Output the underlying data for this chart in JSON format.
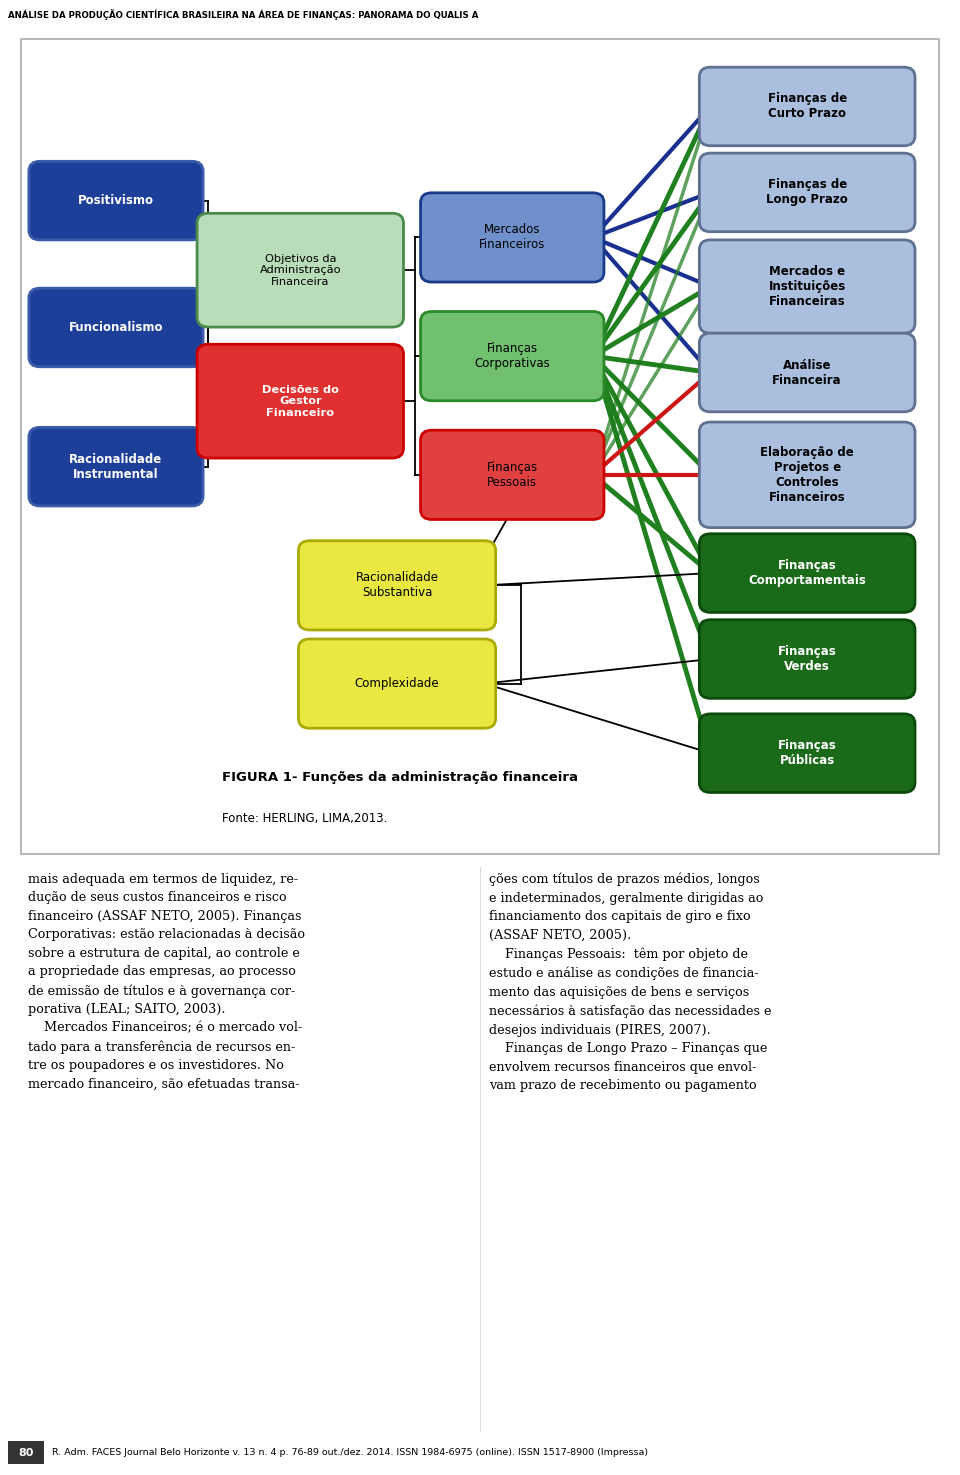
{
  "header_text": "ANÁLISE DA PRODUÇÃO CIENTÍFICA BRASILEIRA NA ÁREA DE FINANÇAS: PANORAMA DO QUALIS A",
  "figure_title": "FIGURA 1- Funções da administração financeira",
  "figure_source": "Fonte: HERLING, LIMA,2013.",
  "footer_text": "R. Adm. FACES Journal Belo Horizonte v. 13 n. 4 p. 76-89 out./dez. 2014. ISSN 1984-6975 (online). ISSN 1517-8900 (Impressa)",
  "body_text_left": "mais adequada em termos de liquidez, re-\ndução de seus custos financeiros e risco\nfinanceiro (ASSAF NETO, 2005). Finanças\nCorporativas: estão relacionadas à decisão\nsobre a estrutura de capital, ao controle e\na propriedade das empresas, ao processo\nde emissão de títulos e à governança cor-\nporativa (LEAL; SAITO, 2003).\n    Mercados Financeiros; é o mercado vol-\ntado para a transferência de recursos en-\ntre os poupadores e os investidores. No\nmercado financeiro, são efetuadas transa-",
  "body_text_right": "ções com títulos de prazos médios, longos\ne indeterminados, geralmente dirigidas ao\nfinanciamento dos capitais de giro e fixo\n(ASSAF NETO, 2005).\n    Finanças Pessoais:  têm por objeto de\nestudo e análise as condições de financia-\nmento das aquisições de bens e serviços\nnecessários à satisfação das necessidades e\ndesejos individuais (PIRES, 2007).\n    Finanças de Longo Prazo – Finanças que\nenvolvem recursos financeiros que envol-\nvam prazo de recebimento ou pagamento",
  "left_nodes": [
    {
      "label": "Positivismo",
      "color": "#1e3f99",
      "text_color": "white",
      "border": "#3a5aaa"
    },
    {
      "label": "Funcionalismo",
      "color": "#1e3f99",
      "text_color": "white",
      "border": "#3a5aaa"
    },
    {
      "label": "Racionalidade\nInstrumental",
      "color": "#1e3f99",
      "text_color": "white",
      "border": "#3a5aaa"
    }
  ],
  "mid1_nodes": [
    {
      "label": "Objetivos da\nAdministração\nFinanceira",
      "color": "#b8ddb8",
      "text_color": "black",
      "border": "#4a8a4a"
    },
    {
      "label": "Decisões do\nGestor\nFinanceiro",
      "color": "#e03030",
      "text_color": "white",
      "border": "#cc0000"
    }
  ],
  "mid2_nodes": [
    {
      "label": "Mercados\nFinanceiros",
      "color": "#7090cc",
      "text_color": "black",
      "border": "#1a3a8a"
    },
    {
      "label": "Finanças\nCorporativas",
      "color": "#70c070",
      "text_color": "black",
      "border": "#2a8a2a"
    },
    {
      "label": "Finanças\nPessoais",
      "color": "#e04040",
      "text_color": "black",
      "border": "#cc0000"
    }
  ],
  "bottom_nodes": [
    {
      "label": "Racionalidade\nSubstantiva",
      "color": "#e8e840",
      "text_color": "black",
      "border": "#aaaa00"
    },
    {
      "label": "Complexidade",
      "color": "#e8e840",
      "text_color": "black",
      "border": "#aaaa00"
    }
  ],
  "right_nodes": [
    {
      "label": "Finanças de\nCurto Prazo",
      "color": "#aabedd",
      "text_color": "black",
      "border": "#607090",
      "bold": true
    },
    {
      "label": "Finanças de\nLongo Prazo",
      "color": "#aabedd",
      "text_color": "black",
      "border": "#607090",
      "bold": true
    },
    {
      "label": "Mercados e\nInstituições\nFinanceiras",
      "color": "#aabedd",
      "text_color": "black",
      "border": "#607090",
      "bold": true
    },
    {
      "label": "Análise\nFinanceira",
      "color": "#aabedd",
      "text_color": "black",
      "border": "#607090",
      "bold": true
    },
    {
      "label": "Elaboração de\nProjetos e\nControles\nFinanceiros",
      "color": "#aabedd",
      "text_color": "black",
      "border": "#607090",
      "bold": true
    },
    {
      "label": "Finanças\nComportamentais",
      "color": "#1a6a1a",
      "text_color": "white",
      "border": "#0a4a0a",
      "bold": true
    },
    {
      "label": "Finanças\nVerdes",
      "color": "#1a6a1a",
      "text_color": "white",
      "border": "#0a4a0a",
      "bold": true
    },
    {
      "label": "Finanças\nPúblicas",
      "color": "#1a6a1a",
      "text_color": "white",
      "border": "#0a4a0a",
      "bold": true
    }
  ]
}
